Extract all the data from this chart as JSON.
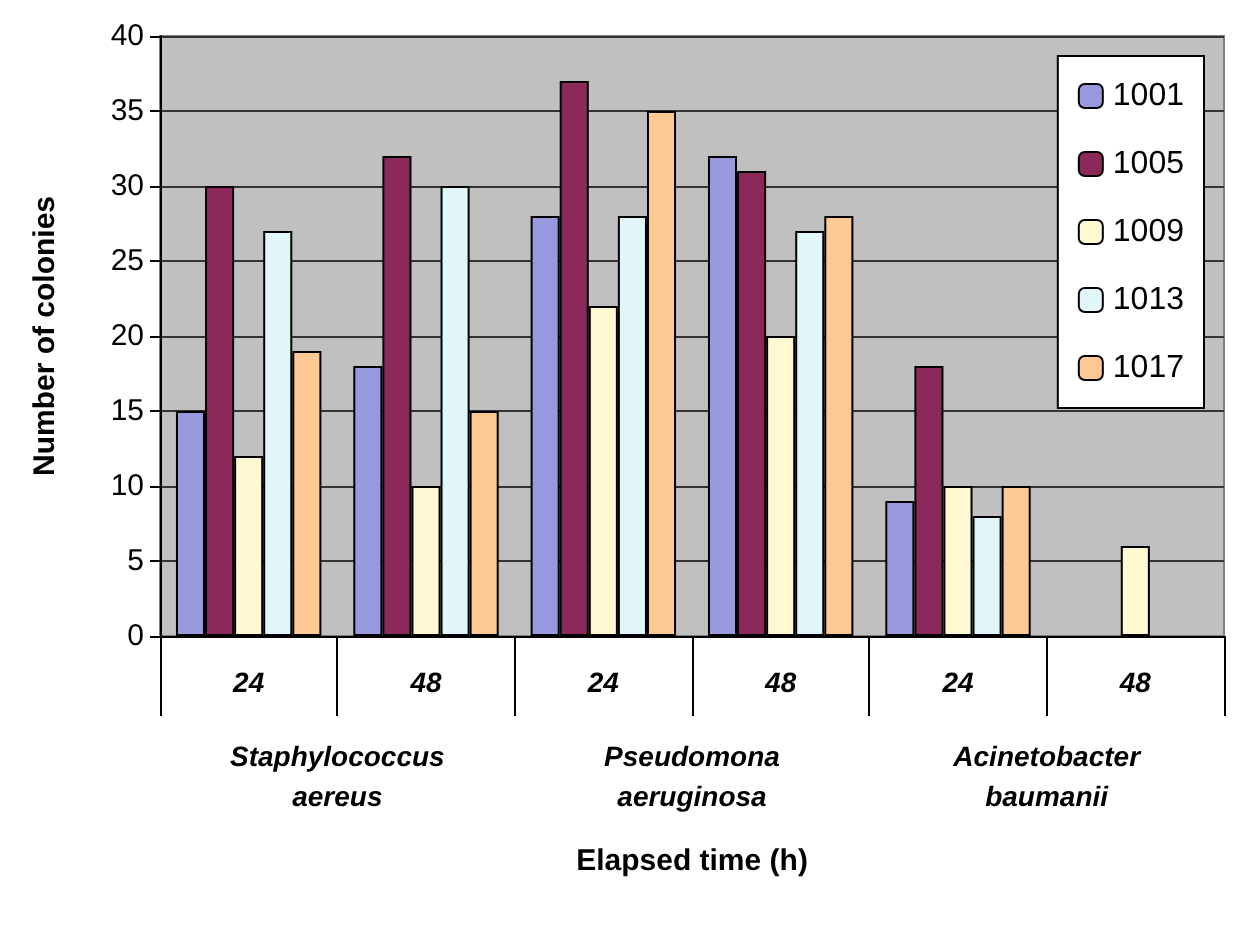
{
  "chart_data": {
    "type": "bar",
    "xlabel": "Elapsed time (h)",
    "ylabel": "Number of colonies",
    "categories": [
      "24",
      "48",
      "24",
      "48",
      "24",
      "48"
    ],
    "annotations": [
      "Staphylococcus\naereus",
      "Pseudomona\naeruginosa",
      "Acinetobacter\nbaumanii"
    ],
    "series": [
      {
        "name": "1001",
        "color": "#9999dd",
        "values": [
          15,
          18,
          28,
          32,
          9,
          null
        ]
      },
      {
        "name": "1005",
        "color": "#8b2a5a",
        "values": [
          30,
          32,
          37,
          31,
          18,
          null
        ]
      },
      {
        "name": "1009",
        "color": "#fff8d0",
        "values": [
          12,
          10,
          22,
          20,
          10,
          6
        ]
      },
      {
        "name": "1013",
        "color": "#e0f6f8",
        "values": [
          27,
          30,
          28,
          27,
          8,
          null
        ]
      },
      {
        "name": "1017",
        "color": "#ffc994",
        "values": [
          19,
          15,
          35,
          28,
          10,
          null
        ]
      }
    ],
    "ylim": [
      0,
      40
    ],
    "yticks": [
      0,
      5,
      10,
      15,
      20,
      25,
      30,
      35,
      40
    ],
    "grid": "y",
    "legend": "top right"
  }
}
